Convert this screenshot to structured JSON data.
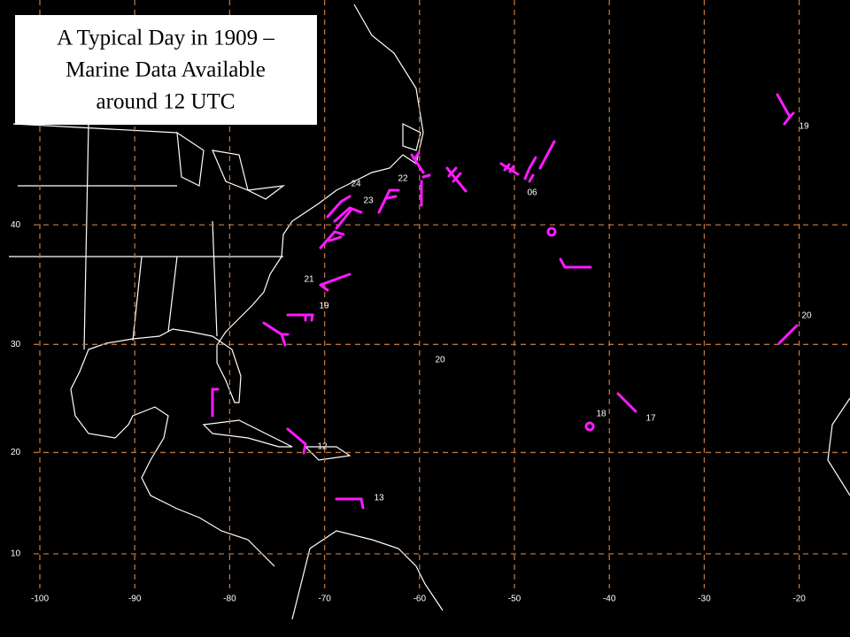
{
  "title_lines": [
    "A Typical Day in 1909 –",
    "Marine Data Available",
    "around 12 UTC"
  ],
  "longitude_ticks": [
    -100,
    -90,
    -80,
    -70,
    -60,
    -50,
    -40,
    -30,
    -20
  ],
  "latitude_ticks": [
    40,
    30,
    20,
    10
  ],
  "stations": [
    "19",
    "06",
    "24",
    "22",
    "23",
    "21",
    "19",
    "20",
    "20",
    "18",
    "17",
    "12",
    "13"
  ]
}
